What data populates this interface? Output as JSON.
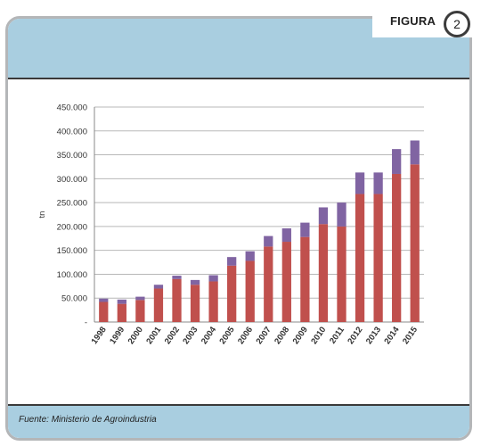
{
  "figure": {
    "label": "FIGURA",
    "number": "2"
  },
  "footer": {
    "source": "Fuente: Ministerio de Agroindustria"
  },
  "colors": {
    "band": "#a9cee0",
    "series_bottom": "#c0504d",
    "series_top": "#8064a2",
    "border": "#b4b6b8"
  },
  "chart_data": {
    "type": "bar",
    "stacked": true,
    "categories": [
      "1998",
      "1999",
      "2000",
      "2001",
      "2002",
      "2003",
      "2004",
      "2005",
      "2006",
      "2007",
      "2008",
      "2009",
      "2010",
      "2011",
      "2012",
      "2013",
      "2014",
      "2015"
    ],
    "series": [
      {
        "color": "#c0504d",
        "values": [
          42000,
          38000,
          46000,
          70000,
          90000,
          78000,
          85000,
          118000,
          128000,
          158000,
          168000,
          178000,
          205000,
          200000,
          268000,
          268000,
          310000,
          330000
        ]
      },
      {
        "color": "#8064a2",
        "values": [
          7000,
          9000,
          7000,
          8000,
          7000,
          10000,
          13000,
          18000,
          20000,
          22000,
          28000,
          30000,
          35000,
          50000,
          45000,
          45000,
          52000,
          50000
        ]
      }
    ],
    "ylabel": "tn",
    "ylim": [
      0,
      450000
    ],
    "yticks": [
      0,
      50000,
      100000,
      150000,
      200000,
      250000,
      300000,
      350000,
      400000,
      450000
    ],
    "ytick_labels": [
      "-",
      "50.000",
      "100.000",
      "150.000",
      "200.000",
      "250.000",
      "300.000",
      "350.000",
      "400.000",
      "450.000"
    ],
    "grid": true
  }
}
